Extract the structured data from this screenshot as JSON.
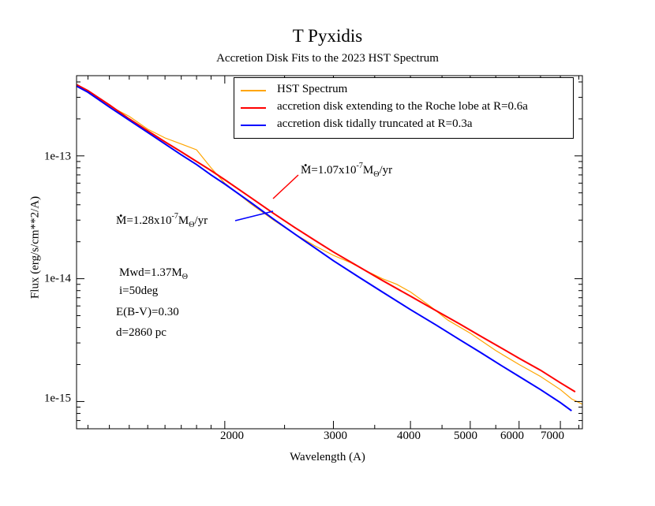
{
  "chart_data": {
    "type": "line",
    "title": "T Pyxidis",
    "subtitle": "Accretion Disk Fits to the 2023 HST Spectrum",
    "xlabel": "Wavelength (A)",
    "ylabel": "Flux (erg/s/cm**2/A)",
    "x_scale": "log",
    "y_scale": "log",
    "xlim": [
      1150,
      7600
    ],
    "ylim": [
      6e-16,
      4.5e-13
    ],
    "x_ticks": [
      2000,
      3000,
      4000,
      5000,
      6000,
      7000
    ],
    "x_tick_labels": [
      "2000",
      "3000",
      "4000",
      "5000",
      "6000",
      "7000"
    ],
    "y_ticks": [
      1e-15,
      1e-14,
      1e-13
    ],
    "y_tick_labels": [
      "1e-15",
      "1e-14",
      "1e-13"
    ],
    "legend_position": "top-right",
    "series": [
      {
        "name": "HST Spectrum",
        "color": "#ffa500",
        "x": [
          1150,
          1200,
          1250,
          1300,
          1400,
          1500,
          1600,
          1700,
          1800,
          1900,
          2000,
          2200,
          2400,
          2600,
          2800,
          3000,
          3200,
          3400,
          3600,
          3800,
          4000,
          4300,
          4600,
          5000,
          5500,
          6000,
          6500,
          7000,
          7300,
          7600
        ],
        "values": [
          3.8e-13,
          3.3e-13,
          2.9e-13,
          2.55e-13,
          2.1e-13,
          1.65e-13,
          1.4e-13,
          1.25e-13,
          1.12e-13,
          8e-14,
          6e-14,
          4.1e-14,
          3e-14,
          2.3e-14,
          1.85e-14,
          1.55e-14,
          1.35e-14,
          1.15e-14,
          1e-14,
          9e-15,
          7.8e-15,
          6e-15,
          4.6e-15,
          3.6e-15,
          2.6e-15,
          2e-15,
          1.6e-15,
          1.25e-15,
          1.05e-15,
          9.5e-16
        ]
      },
      {
        "name": "accretion disk extending to the Roche lobe at R=0.6a",
        "color": "#ff0000",
        "x": [
          1150,
          1200,
          1300,
          1400,
          1500,
          1600,
          1700,
          1800,
          1900,
          2000,
          2200,
          2400,
          2600,
          2800,
          3000,
          3300,
          3600,
          4000,
          4400,
          4800,
          5200,
          5600,
          6000,
          6500,
          7000,
          7400
        ],
        "values": [
          3.8e-13,
          3.4e-13,
          2.6e-13,
          2e-13,
          1.6e-13,
          1.3e-13,
          1.08e-13,
          9e-14,
          7.6e-14,
          6.4e-14,
          4.6e-14,
          3.4e-14,
          2.6e-14,
          2.05e-14,
          1.65e-14,
          1.25e-14,
          9.7e-15,
          7.2e-15,
          5.5e-15,
          4.3e-15,
          3.4e-15,
          2.75e-15,
          2.25e-15,
          1.8e-15,
          1.42e-15,
          1.2e-15
        ]
      },
      {
        "name": "accretion disk tidally truncated at R=0.3a",
        "color": "#0000ff",
        "x": [
          1150,
          1200,
          1300,
          1400,
          1500,
          1600,
          1700,
          1800,
          1900,
          2000,
          2200,
          2400,
          2600,
          2800,
          3000,
          3300,
          3600,
          4000,
          4400,
          4800,
          5200,
          5600,
          6000,
          6500,
          7000,
          7300
        ],
        "values": [
          3.7e-13,
          3.3e-13,
          2.5e-13,
          1.95e-13,
          1.55e-13,
          1.25e-13,
          1.02e-13,
          8.5e-14,
          7e-14,
          5.9e-14,
          4.2e-14,
          3.05e-14,
          2.3e-14,
          1.78e-14,
          1.4e-14,
          1.03e-14,
          7.8e-15,
          5.6e-15,
          4.2e-15,
          3.2e-15,
          2.5e-15,
          1.98e-15,
          1.6e-15,
          1.25e-15,
          9.8e-16,
          8.4e-16
        ]
      }
    ],
    "annotations": {
      "mdot_red": {
        "base": "M=1.07x10",
        "exp": "-7",
        "unit": "M",
        "unit_sub": "Θ",
        "tail": "/yr"
      },
      "mdot_blue": {
        "base": "M=1.28x10",
        "exp": "-7",
        "unit": "M",
        "unit_sub": "Θ",
        "tail": "/yr"
      },
      "mwd": {
        "text": "Mwd=1.37M",
        "sub": "Θ"
      },
      "incl": "i=50deg",
      "ebv": "E(B-V)=0.30",
      "dist": "d=2860 pc"
    }
  }
}
